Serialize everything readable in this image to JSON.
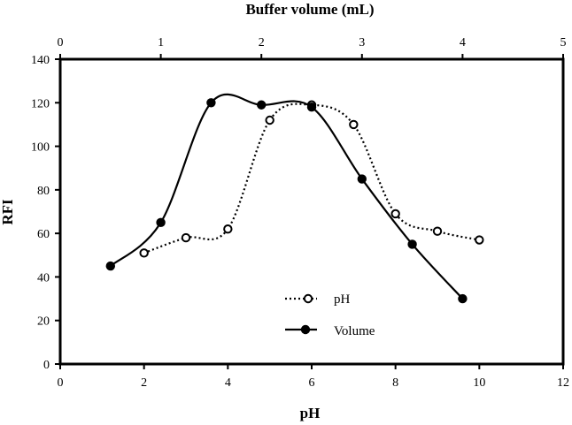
{
  "chart_data": {
    "type": "line",
    "title": "",
    "xlabel": "pH",
    "ylabel": "RFI",
    "x2label": "Buffer volume (mL)",
    "xlim": [
      0,
      12
    ],
    "ylim": [
      0,
      140
    ],
    "x2lim": [
      0,
      5
    ],
    "x_ticks": [
      "0",
      "2",
      "4",
      "6",
      "8",
      "10",
      "12"
    ],
    "y_ticks": [
      "0",
      "20",
      "40",
      "60",
      "80",
      "100",
      "120",
      "140"
    ],
    "x2_ticks": [
      "0",
      "1",
      "2",
      "3",
      "4",
      "5"
    ],
    "grid": false,
    "legend_position": "bottom-center",
    "series": [
      {
        "name": "pH",
        "axis": "bottom",
        "line_style": "dotted",
        "marker": "open-circle",
        "x": [
          2,
          3,
          4,
          5,
          6,
          7,
          8,
          9,
          10
        ],
        "values": [
          51,
          58,
          62,
          112,
          119,
          110,
          69,
          61,
          57
        ]
      },
      {
        "name": "Volume",
        "axis": "top",
        "line_style": "solid",
        "marker": "filled-circle",
        "x": [
          0.5,
          1,
          1.5,
          2,
          2.5,
          3,
          3.5,
          4
        ],
        "values": [
          45,
          65,
          120,
          119,
          118,
          85,
          55,
          30
        ]
      }
    ]
  }
}
